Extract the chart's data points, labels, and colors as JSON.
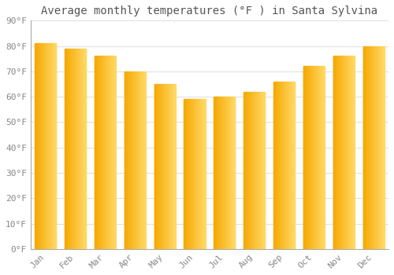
{
  "title": "Average monthly temperatures (°F ) in Santa Sylvina",
  "months": [
    "Jan",
    "Feb",
    "Mar",
    "Apr",
    "May",
    "Jun",
    "Jul",
    "Aug",
    "Sep",
    "Oct",
    "Nov",
    "Dec"
  ],
  "values": [
    81,
    79,
    76,
    70,
    65,
    59,
    60,
    62,
    66,
    72,
    76,
    80
  ],
  "bar_color_left": "#F5A800",
  "bar_color_right": "#FFD966",
  "background_color": "#ffffff",
  "ylim": [
    0,
    90
  ],
  "yticks": [
    0,
    10,
    20,
    30,
    40,
    50,
    60,
    70,
    80,
    90
  ],
  "ytick_labels": [
    "0°F",
    "10°F",
    "20°F",
    "30°F",
    "40°F",
    "50°F",
    "60°F",
    "70°F",
    "80°F",
    "90°F"
  ],
  "grid_color": "#dddddd",
  "title_fontsize": 10,
  "tick_fontsize": 8,
  "font_color": "#888888",
  "title_color": "#555555"
}
